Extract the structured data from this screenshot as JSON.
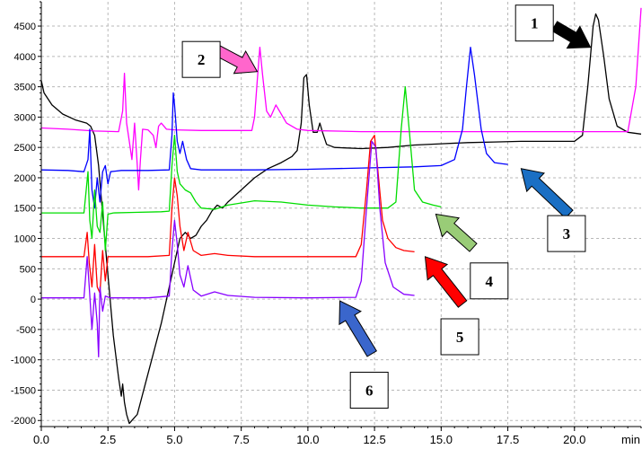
{
  "chart_data": {
    "type": "line",
    "title": "",
    "xlabel": "",
    "ylabel": "",
    "x_unit": "min",
    "xlim": [
      0,
      22.5
    ],
    "ylim": [
      -2100,
      4900
    ],
    "grid": true,
    "x_ticks": [
      0.0,
      2.5,
      5.0,
      7.5,
      10.0,
      12.5,
      15.0,
      17.5,
      20.0
    ],
    "x_tick_labels": [
      "0.0",
      "2.5",
      "5.0",
      "7.5",
      "10.0",
      "12.5",
      "15.0",
      "17.5",
      "20.0"
    ],
    "y_ticks": [
      -2000,
      -1500,
      -1000,
      -500,
      0,
      500,
      1000,
      1500,
      2000,
      2500,
      3000,
      3500,
      4000,
      4500
    ],
    "y_tick_labels": [
      "-2000",
      "-1500",
      "-1000",
      "-500",
      "0",
      "500",
      "1000",
      "1500",
      "2000",
      "2500",
      "3000",
      "3500",
      "4000",
      "4500"
    ],
    "series": [
      {
        "label": "1",
        "color": "#000000",
        "points": [
          [
            0,
            3600
          ],
          [
            0.1,
            3400
          ],
          [
            0.4,
            3200
          ],
          [
            0.8,
            3050
          ],
          [
            1.3,
            2950
          ],
          [
            1.7,
            2900
          ],
          [
            1.85,
            2850
          ],
          [
            2.0,
            2700
          ],
          [
            2.15,
            2200
          ],
          [
            2.3,
            1400
          ],
          [
            2.5,
            400
          ],
          [
            2.7,
            -600
          ],
          [
            2.9,
            -1300
          ],
          [
            3.0,
            -1600
          ],
          [
            3.05,
            -1400
          ],
          [
            3.12,
            -1700
          ],
          [
            3.2,
            -1900
          ],
          [
            3.3,
            -2050
          ],
          [
            3.4,
            -2000
          ],
          [
            3.6,
            -1900
          ],
          [
            3.9,
            -1400
          ],
          [
            4.2,
            -900
          ],
          [
            4.5,
            -400
          ],
          [
            4.8,
            200
          ],
          [
            5.0,
            600
          ],
          [
            5.2,
            1000
          ],
          [
            5.4,
            1100
          ],
          [
            5.6,
            1000
          ],
          [
            5.8,
            1050
          ],
          [
            6.0,
            1200
          ],
          [
            6.2,
            1300
          ],
          [
            6.4,
            1450
          ],
          [
            6.6,
            1550
          ],
          [
            6.8,
            1500
          ],
          [
            7.0,
            1600
          ],
          [
            7.5,
            1800
          ],
          [
            8.0,
            2000
          ],
          [
            8.5,
            2150
          ],
          [
            9.0,
            2250
          ],
          [
            9.4,
            2350
          ],
          [
            9.6,
            2450
          ],
          [
            9.75,
            2900
          ],
          [
            9.85,
            3650
          ],
          [
            9.95,
            3700
          ],
          [
            10.05,
            3200
          ],
          [
            10.2,
            2750
          ],
          [
            10.35,
            2750
          ],
          [
            10.45,
            2900
          ],
          [
            10.55,
            2750
          ],
          [
            10.7,
            2550
          ],
          [
            11.0,
            2500
          ],
          [
            12.0,
            2480
          ],
          [
            13.0,
            2500
          ],
          [
            14.0,
            2540
          ],
          [
            15.0,
            2560
          ],
          [
            16.0,
            2580
          ],
          [
            17.0,
            2590
          ],
          [
            18.0,
            2600
          ],
          [
            19.0,
            2600
          ],
          [
            20.0,
            2600
          ],
          [
            20.3,
            2700
          ],
          [
            20.5,
            3500
          ],
          [
            20.7,
            4500
          ],
          [
            20.8,
            4700
          ],
          [
            20.9,
            4600
          ],
          [
            21.1,
            4000
          ],
          [
            21.3,
            3300
          ],
          [
            21.6,
            2850
          ],
          [
            22.0,
            2750
          ],
          [
            22.5,
            2720
          ]
        ]
      },
      {
        "label": "2",
        "color": "#ff00ff",
        "points": [
          [
            0,
            2820
          ],
          [
            1.0,
            2800
          ],
          [
            2.0,
            2770
          ],
          [
            2.9,
            2760
          ],
          [
            3.05,
            3100
          ],
          [
            3.12,
            3720
          ],
          [
            3.2,
            2900
          ],
          [
            3.3,
            2600
          ],
          [
            3.4,
            2300
          ],
          [
            3.5,
            2900
          ],
          [
            3.6,
            2200
          ],
          [
            3.65,
            1800
          ],
          [
            3.72,
            2300
          ],
          [
            3.8,
            2800
          ],
          [
            4.0,
            2790
          ],
          [
            4.2,
            2700
          ],
          [
            4.3,
            2500
          ],
          [
            4.4,
            2850
          ],
          [
            4.5,
            2900
          ],
          [
            4.7,
            2800
          ],
          [
            5.0,
            2790
          ],
          [
            6.0,
            2780
          ],
          [
            7.0,
            2780
          ],
          [
            7.9,
            2780
          ],
          [
            8.0,
            3000
          ],
          [
            8.1,
            3600
          ],
          [
            8.2,
            4150
          ],
          [
            8.3,
            3700
          ],
          [
            8.45,
            3100
          ],
          [
            8.6,
            3000
          ],
          [
            8.8,
            3200
          ],
          [
            9.0,
            3050
          ],
          [
            9.2,
            2900
          ],
          [
            9.6,
            2800
          ],
          [
            10.0,
            2780
          ],
          [
            12.0,
            2760
          ],
          [
            14.0,
            2760
          ],
          [
            16.0,
            2760
          ],
          [
            18.0,
            2760
          ],
          [
            20.0,
            2760
          ],
          [
            22.0,
            2760
          ],
          [
            22.3,
            3500
          ],
          [
            22.5,
            4800
          ]
        ]
      },
      {
        "label": "3",
        "color": "#0000ff",
        "points": [
          [
            0,
            2130
          ],
          [
            1.0,
            2120
          ],
          [
            1.6,
            2100
          ],
          [
            1.75,
            2300
          ],
          [
            1.82,
            2800
          ],
          [
            1.9,
            1800
          ],
          [
            2.0,
            1500
          ],
          [
            2.1,
            2000
          ],
          [
            2.2,
            1600
          ],
          [
            2.3,
            2100
          ],
          [
            2.4,
            2200
          ],
          [
            2.5,
            1900
          ],
          [
            2.6,
            2100
          ],
          [
            3.0,
            2120
          ],
          [
            4.0,
            2120
          ],
          [
            4.8,
            2130
          ],
          [
            4.9,
            2700
          ],
          [
            4.95,
            3400
          ],
          [
            5.0,
            3200
          ],
          [
            5.1,
            2600
          ],
          [
            5.2,
            2400
          ],
          [
            5.3,
            2600
          ],
          [
            5.45,
            2300
          ],
          [
            5.6,
            2150
          ],
          [
            6.0,
            2130
          ],
          [
            8.0,
            2130
          ],
          [
            10.0,
            2140
          ],
          [
            12.0,
            2160
          ],
          [
            14.0,
            2180
          ],
          [
            15.0,
            2200
          ],
          [
            15.5,
            2300
          ],
          [
            15.8,
            2800
          ],
          [
            15.95,
            3500
          ],
          [
            16.1,
            4150
          ],
          [
            16.25,
            3700
          ],
          [
            16.5,
            2800
          ],
          [
            16.7,
            2400
          ],
          [
            17.0,
            2250
          ],
          [
            17.3,
            2230
          ],
          [
            17.5,
            2220
          ]
        ]
      },
      {
        "label": "4",
        "color": "#00dd00",
        "points": [
          [
            0,
            1420
          ],
          [
            1.0,
            1420
          ],
          [
            1.6,
            1420
          ],
          [
            1.75,
            2100
          ],
          [
            1.82,
            1300
          ],
          [
            1.9,
            1000
          ],
          [
            2.0,
            1800
          ],
          [
            2.1,
            1200
          ],
          [
            2.2,
            1100
          ],
          [
            2.3,
            1600
          ],
          [
            2.4,
            800
          ],
          [
            2.5,
            1400
          ],
          [
            2.7,
            1420
          ],
          [
            3.5,
            1430
          ],
          [
            4.5,
            1440
          ],
          [
            4.8,
            1450
          ],
          [
            4.9,
            2200
          ],
          [
            5.0,
            2700
          ],
          [
            5.1,
            2100
          ],
          [
            5.2,
            1900
          ],
          [
            5.4,
            1800
          ],
          [
            5.6,
            1750
          ],
          [
            5.8,
            1600
          ],
          [
            6.0,
            1500
          ],
          [
            6.5,
            1480
          ],
          [
            7.0,
            1550
          ],
          [
            8.0,
            1620
          ],
          [
            9.0,
            1600
          ],
          [
            10.0,
            1550
          ],
          [
            11.0,
            1520
          ],
          [
            12.0,
            1500
          ],
          [
            13.0,
            1500
          ],
          [
            13.3,
            1600
          ],
          [
            13.5,
            2800
          ],
          [
            13.65,
            3500
          ],
          [
            13.8,
            2800
          ],
          [
            14.0,
            1800
          ],
          [
            14.3,
            1600
          ],
          [
            14.7,
            1550
          ],
          [
            15.0,
            1520
          ]
        ]
      },
      {
        "label": "5",
        "color": "#ff0000",
        "points": [
          [
            0,
            700
          ],
          [
            1.0,
            700
          ],
          [
            1.6,
            700
          ],
          [
            1.72,
            1100
          ],
          [
            1.8,
            600
          ],
          [
            1.9,
            200
          ],
          [
            2.0,
            900
          ],
          [
            2.1,
            200
          ],
          [
            2.2,
            100
          ],
          [
            2.3,
            800
          ],
          [
            2.4,
            300
          ],
          [
            2.5,
            700
          ],
          [
            2.7,
            700
          ],
          [
            4.0,
            700
          ],
          [
            4.8,
            720
          ],
          [
            4.9,
            1500
          ],
          [
            5.0,
            2000
          ],
          [
            5.1,
            1700
          ],
          [
            5.2,
            1200
          ],
          [
            5.35,
            800
          ],
          [
            5.5,
            1100
          ],
          [
            5.7,
            800
          ],
          [
            6.0,
            720
          ],
          [
            6.5,
            750
          ],
          [
            7.0,
            720
          ],
          [
            8.0,
            700
          ],
          [
            10.0,
            700
          ],
          [
            11.8,
            700
          ],
          [
            12.0,
            900
          ],
          [
            12.2,
            1800
          ],
          [
            12.35,
            2600
          ],
          [
            12.5,
            2700
          ],
          [
            12.65,
            2000
          ],
          [
            12.8,
            1300
          ],
          [
            13.0,
            1000
          ],
          [
            13.3,
            850
          ],
          [
            13.6,
            800
          ],
          [
            14.0,
            780
          ]
        ]
      },
      {
        "label": "6",
        "color": "#8800ff",
        "points": [
          [
            0,
            20
          ],
          [
            1.0,
            20
          ],
          [
            1.6,
            20
          ],
          [
            1.72,
            700
          ],
          [
            1.8,
            200
          ],
          [
            1.9,
            -500
          ],
          [
            2.0,
            100
          ],
          [
            2.1,
            -400
          ],
          [
            2.15,
            -950
          ],
          [
            2.2,
            200
          ],
          [
            2.3,
            -200
          ],
          [
            2.4,
            50
          ],
          [
            2.6,
            20
          ],
          [
            4.0,
            20
          ],
          [
            4.8,
            50
          ],
          [
            4.9,
            800
          ],
          [
            5.0,
            1300
          ],
          [
            5.1,
            900
          ],
          [
            5.2,
            400
          ],
          [
            5.35,
            200
          ],
          [
            5.5,
            550
          ],
          [
            5.7,
            150
          ],
          [
            6.0,
            50
          ],
          [
            6.5,
            120
          ],
          [
            7.0,
            60
          ],
          [
            8.0,
            30
          ],
          [
            10.0,
            20
          ],
          [
            11.8,
            30
          ],
          [
            12.0,
            300
          ],
          [
            12.2,
            1500
          ],
          [
            12.4,
            2600
          ],
          [
            12.55,
            2500
          ],
          [
            12.7,
            1500
          ],
          [
            12.9,
            600
          ],
          [
            13.2,
            200
          ],
          [
            13.6,
            80
          ],
          [
            14.0,
            60
          ]
        ]
      }
    ],
    "callouts": [
      {
        "label": "1",
        "color": "#000000",
        "box": [
          18.5,
          4550
        ],
        "tail": [
          19.25,
          4500
        ],
        "tip": [
          20.6,
          4150
        ]
      },
      {
        "label": "2",
        "color": "#ff66cc",
        "box": [
          6.0,
          3950
        ],
        "tail": [
          6.6,
          4100
        ],
        "tip": [
          8.1,
          3750
        ]
      },
      {
        "label": "3",
        "color": "#1a6fc4",
        "box": [
          19.7,
          1080
        ],
        "tail": [
          19.8,
          1400
        ],
        "tip": [
          18.0,
          2150
        ]
      },
      {
        "label": "4",
        "color": "#99cc77",
        "box": [
          16.8,
          300
        ],
        "tail": [
          16.2,
          850
        ],
        "tip": [
          14.8,
          1400
        ]
      },
      {
        "label": "5",
        "color": "#ff0000",
        "box": [
          15.7,
          -620
        ],
        "tail": [
          15.8,
          -80
        ],
        "tip": [
          14.4,
          700
        ]
      },
      {
        "label": "6",
        "color": "#3a66cc",
        "box": [
          12.3,
          -1500
        ],
        "tail": [
          12.4,
          -900
        ],
        "tip": [
          11.2,
          -30
        ]
      }
    ]
  }
}
